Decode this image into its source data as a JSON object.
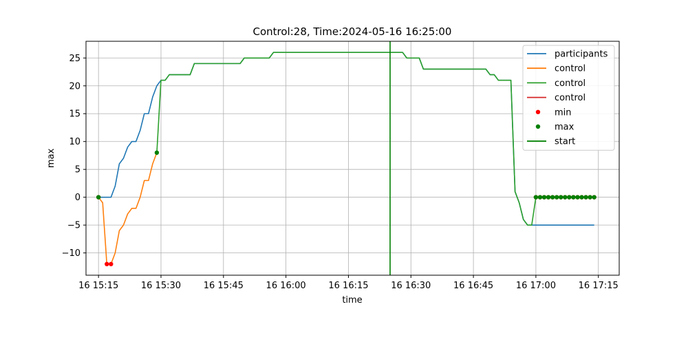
{
  "chart_data": {
    "type": "line",
    "title": "Control:28, Time:2024-05-16 16:25:00",
    "xlabel": "time",
    "ylabel": "max",
    "x_unit": "time of day 2024-05-16",
    "xlim": [
      "15:12",
      "17:20"
    ],
    "ylim": [
      -14,
      28
    ],
    "x_ticks": [
      "15:15",
      "15:30",
      "15:45",
      "16:00",
      "16:15",
      "16:30",
      "16:45",
      "17:00",
      "17:15"
    ],
    "x_tick_labels": [
      "16 15:15",
      "16 15:30",
      "16 15:45",
      "16 16:00",
      "16 16:15",
      "16 16:30",
      "16 16:45",
      "16 17:00",
      "16 17:15"
    ],
    "y_ticks": [
      -10,
      -5,
      0,
      5,
      10,
      15,
      20,
      25
    ],
    "y_tick_labels": [
      "−10",
      "−5",
      "0",
      "5",
      "10",
      "15",
      "20",
      "25"
    ],
    "grid": true,
    "legend_position": "top-right",
    "series": [
      {
        "name": "participants",
        "kind": "line",
        "color": "#1f77b4",
        "points": [
          [
            "15:15",
            0
          ],
          [
            "15:16",
            0
          ],
          [
            "15:17",
            0
          ],
          [
            "15:18",
            0
          ],
          [
            "15:19",
            2
          ],
          [
            "15:20",
            6
          ],
          [
            "15:21",
            7
          ],
          [
            "15:22",
            9
          ],
          [
            "15:23",
            10
          ],
          [
            "15:24",
            10
          ],
          [
            "15:25",
            12
          ],
          [
            "15:26",
            15
          ],
          [
            "15:27",
            15
          ],
          [
            "15:28",
            18
          ],
          [
            "15:29",
            20
          ],
          [
            "15:30",
            21
          ],
          [
            "15:31",
            21
          ],
          [
            "15:32",
            22
          ],
          [
            "15:37",
            22
          ],
          [
            "15:38",
            24
          ],
          [
            "15:49",
            24
          ],
          [
            "15:50",
            25
          ],
          [
            "15:56",
            25
          ],
          [
            "15:57",
            26
          ],
          [
            "16:28",
            26
          ],
          [
            "16:29",
            25
          ],
          [
            "16:32",
            25
          ],
          [
            "16:33",
            23
          ],
          [
            "16:48",
            23
          ],
          [
            "16:49",
            22
          ],
          [
            "16:50",
            22
          ],
          [
            "16:51",
            21
          ],
          [
            "16:54",
            21
          ],
          [
            "16:55",
            1
          ],
          [
            "16:56",
            -1
          ],
          [
            "16:57",
            -4
          ],
          [
            "16:58",
            -5
          ],
          [
            "17:14",
            -5
          ]
        ]
      },
      {
        "name": "control",
        "kind": "line",
        "color": "#ff7f0e",
        "points": [
          [
            "15:15",
            0
          ],
          [
            "15:16",
            -1
          ],
          [
            "15:17",
            -12
          ],
          [
            "15:18",
            -12
          ],
          [
            "15:19",
            -10
          ],
          [
            "15:20",
            -6
          ],
          [
            "15:21",
            -5
          ],
          [
            "15:22",
            -3
          ],
          [
            "15:23",
            -2
          ],
          [
            "15:24",
            -2
          ],
          [
            "15:25",
            0
          ],
          [
            "15:26",
            3
          ],
          [
            "15:27",
            3
          ],
          [
            "15:28",
            6
          ],
          [
            "15:29",
            8
          ]
        ]
      },
      {
        "name": "control",
        "kind": "line",
        "color": "#2ca02c",
        "points": [
          [
            "15:29",
            8
          ],
          [
            "15:30",
            21
          ],
          [
            "15:31",
            21
          ],
          [
            "15:32",
            22
          ],
          [
            "15:37",
            22
          ],
          [
            "15:38",
            24
          ],
          [
            "15:49",
            24
          ],
          [
            "15:50",
            25
          ],
          [
            "15:56",
            25
          ],
          [
            "15:57",
            26
          ],
          [
            "16:28",
            26
          ],
          [
            "16:29",
            25
          ],
          [
            "16:32",
            25
          ],
          [
            "16:33",
            23
          ],
          [
            "16:48",
            23
          ],
          [
            "16:49",
            22
          ],
          [
            "16:50",
            22
          ],
          [
            "16:51",
            21
          ],
          [
            "16:54",
            21
          ],
          [
            "16:55",
            1
          ],
          [
            "16:56",
            -1
          ],
          [
            "16:57",
            -4
          ],
          [
            "16:58",
            -5
          ],
          [
            "16:59",
            -5
          ],
          [
            "17:00",
            0
          ],
          [
            "17:14",
            0
          ]
        ]
      },
      {
        "name": "control",
        "kind": "line",
        "color": "#d62728",
        "points": [
          [
            "17:00",
            0
          ],
          [
            "17:14",
            0
          ]
        ]
      },
      {
        "name": "min",
        "kind": "scatter",
        "color": "#ff0000",
        "points": [
          [
            "15:15",
            0
          ],
          [
            "15:17",
            -12
          ],
          [
            "15:18",
            -12
          ],
          [
            "17:00",
            0
          ],
          [
            "17:01",
            0
          ],
          [
            "17:02",
            0
          ],
          [
            "17:03",
            0
          ],
          [
            "17:04",
            0
          ],
          [
            "17:05",
            0
          ],
          [
            "17:06",
            0
          ],
          [
            "17:07",
            0
          ],
          [
            "17:08",
            0
          ],
          [
            "17:09",
            0
          ],
          [
            "17:10",
            0
          ],
          [
            "17:11",
            0
          ],
          [
            "17:12",
            0
          ],
          [
            "17:13",
            0
          ],
          [
            "17:14",
            0
          ]
        ]
      },
      {
        "name": "max",
        "kind": "scatter",
        "color": "#008000",
        "points": [
          [
            "15:15",
            0
          ],
          [
            "15:29",
            8
          ],
          [
            "17:00",
            0
          ],
          [
            "17:01",
            0
          ],
          [
            "17:02",
            0
          ],
          [
            "17:03",
            0
          ],
          [
            "17:04",
            0
          ],
          [
            "17:05",
            0
          ],
          [
            "17:06",
            0
          ],
          [
            "17:07",
            0
          ],
          [
            "17:08",
            0
          ],
          [
            "17:09",
            0
          ],
          [
            "17:10",
            0
          ],
          [
            "17:11",
            0
          ],
          [
            "17:12",
            0
          ],
          [
            "17:13",
            0
          ],
          [
            "17:14",
            0
          ]
        ]
      },
      {
        "name": "start",
        "kind": "vline",
        "color": "#008000",
        "x": "16:25"
      }
    ]
  }
}
